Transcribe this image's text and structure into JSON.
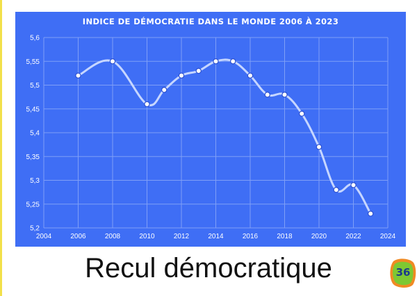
{
  "slide": {
    "caption": "Recul démocratique",
    "page_number": "36",
    "accent_colors": {
      "panel_background": "#3f6ef5",
      "line": "#c6d6ff",
      "marker_fill": "#ffffff",
      "badge_outer": "#f08a24",
      "badge_inner": "#7ec832"
    }
  },
  "chart_data": {
    "type": "line",
    "title": "INDICE DE DÉMOCRATIE DANS LE MONDE 2006 À 2023",
    "xlabel": "",
    "ylabel": "",
    "xlim": [
      2004,
      2024
    ],
    "ylim": [
      5.2,
      5.6
    ],
    "x_ticks": [
      "2004",
      "2006",
      "2008",
      "2010",
      "2012",
      "2014",
      "2016",
      "2018",
      "2020",
      "2022",
      "2024"
    ],
    "y_ticks": [
      "5,2",
      "5,25",
      "5,3",
      "5,35",
      "5,4",
      "5,45",
      "5,5",
      "5,55",
      "5,6"
    ],
    "grid": true,
    "smooth": true,
    "series": [
      {
        "x": [
          2006,
          2008,
          2010,
          2011,
          2012,
          2013,
          2014,
          2015,
          2016,
          2017,
          2018,
          2019,
          2020,
          2021,
          2022,
          2023
        ],
        "values": [
          5.52,
          5.55,
          5.46,
          5.49,
          5.52,
          5.53,
          5.55,
          5.55,
          5.52,
          5.48,
          5.48,
          5.44,
          5.37,
          5.28,
          5.29,
          5.23
        ]
      }
    ]
  }
}
